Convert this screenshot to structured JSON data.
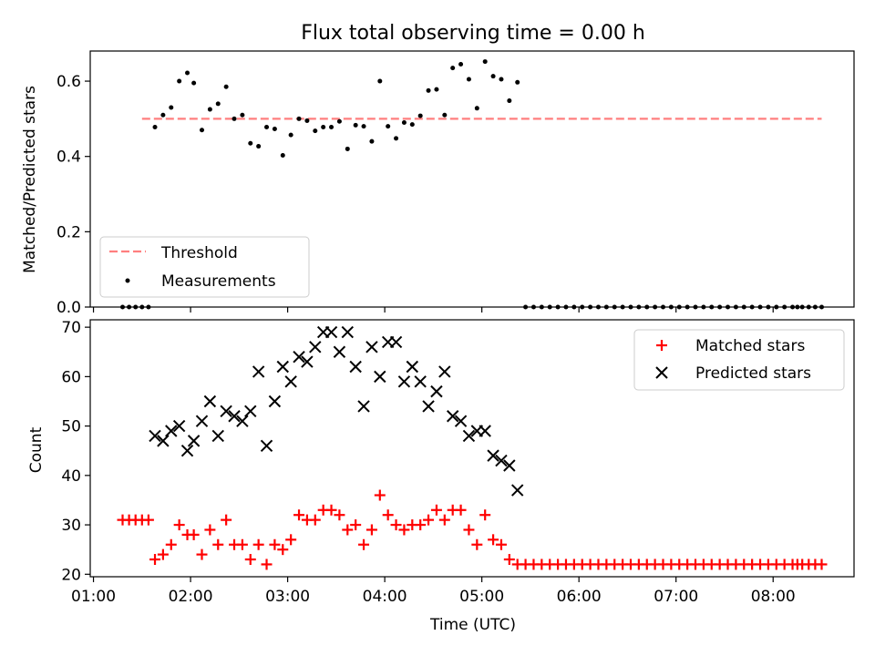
{
  "title": "Flux total observing time = 0.00 h",
  "colors": {
    "threshold": "#ff7f7f",
    "measurements": "#000000",
    "matched": "#ff0000",
    "predicted": "#000000"
  },
  "chart_data": [
    {
      "type": "scatter",
      "ylabel": "Matched/Predicted stars",
      "ylim": [
        0,
        0.68
      ],
      "yticks": [
        "0.0",
        "0.2",
        "0.4",
        "0.6"
      ],
      "legend_position": "lower-left",
      "legend": [
        "Threshold",
        "Measurements"
      ],
      "threshold": {
        "name": "Threshold",
        "y": 0.5,
        "x_start": "01:30",
        "x_end": "08:30"
      },
      "series": [
        {
          "name": "Measurements",
          "points": [
            [
              "01:18",
              0
            ],
            [
              "01:22",
              0
            ],
            [
              "01:26",
              0
            ],
            [
              "01:30",
              0
            ],
            [
              "01:34",
              0
            ],
            [
              "01:38",
              0.478
            ],
            [
              "01:43",
              0.51
            ],
            [
              "01:48",
              0.53
            ],
            [
              "01:53",
              0.6
            ],
            [
              "01:58",
              0.622
            ],
            [
              "02:02",
              0.595
            ],
            [
              "02:07",
              0.47
            ],
            [
              "02:12",
              0.525
            ],
            [
              "02:17",
              0.54
            ],
            [
              "02:22",
              0.585
            ],
            [
              "02:27",
              0.5
            ],
            [
              "02:32",
              0.51
            ],
            [
              "02:37",
              0.435
            ],
            [
              "02:42",
              0.427
            ],
            [
              "02:47",
              0.478
            ],
            [
              "02:52",
              0.473
            ],
            [
              "02:57",
              0.403
            ],
            [
              "03:02",
              0.457
            ],
            [
              "03:07",
              0.5
            ],
            [
              "03:12",
              0.495
            ],
            [
              "03:17",
              0.468
            ],
            [
              "03:22",
              0.478
            ],
            [
              "03:27",
              0.478
            ],
            [
              "03:32",
              0.493
            ],
            [
              "03:37",
              0.42
            ],
            [
              "03:42",
              0.483
            ],
            [
              "03:47",
              0.48
            ],
            [
              "03:52",
              0.44
            ],
            [
              "03:57",
              0.6
            ],
            [
              "04:02",
              0.48
            ],
            [
              "04:07",
              0.448
            ],
            [
              "04:12",
              0.49
            ],
            [
              "04:17",
              0.485
            ],
            [
              "04:22",
              0.508
            ],
            [
              "04:27",
              0.575
            ],
            [
              "04:32",
              0.578
            ],
            [
              "04:37",
              0.51
            ],
            [
              "04:42",
              0.635
            ],
            [
              "04:47",
              0.645
            ],
            [
              "04:52",
              0.605
            ],
            [
              "04:57",
              0.528
            ],
            [
              "05:02",
              0.652
            ],
            [
              "05:07",
              0.613
            ],
            [
              "05:12",
              0.605
            ],
            [
              "05:17",
              0.548
            ],
            [
              "05:22",
              0.597
            ],
            [
              "05:27",
              0
            ],
            [
              "05:32",
              0
            ],
            [
              "05:37",
              0
            ],
            [
              "05:42",
              0
            ],
            [
              "05:47",
              0
            ],
            [
              "05:52",
              0
            ],
            [
              "05:57",
              0
            ],
            [
              "06:02",
              0
            ],
            [
              "06:07",
              0
            ],
            [
              "06:12",
              0
            ],
            [
              "06:17",
              0
            ],
            [
              "06:22",
              0
            ],
            [
              "06:27",
              0
            ],
            [
              "06:32",
              0
            ],
            [
              "06:37",
              0
            ],
            [
              "06:42",
              0
            ],
            [
              "06:47",
              0
            ],
            [
              "06:52",
              0
            ],
            [
              "06:57",
              0
            ],
            [
              "07:02",
              0
            ],
            [
              "07:07",
              0
            ],
            [
              "07:12",
              0
            ],
            [
              "07:17",
              0
            ],
            [
              "07:22",
              0
            ],
            [
              "07:27",
              0
            ],
            [
              "07:32",
              0
            ],
            [
              "07:37",
              0
            ],
            [
              "07:42",
              0
            ],
            [
              "07:47",
              0
            ],
            [
              "07:52",
              0
            ],
            [
              "07:57",
              0
            ],
            [
              "08:02",
              0
            ],
            [
              "08:07",
              0
            ],
            [
              "08:12",
              0
            ],
            [
              "08:15",
              0
            ],
            [
              "08:18",
              0
            ],
            [
              "08:22",
              0
            ],
            [
              "08:26",
              0
            ],
            [
              "08:30",
              0
            ]
          ]
        }
      ]
    },
    {
      "type": "scatter",
      "xlabel": "Time (UTC)",
      "ylabel": "Count",
      "xlim": [
        "00:58",
        "08:50"
      ],
      "ylim": [
        19.5,
        71.5
      ],
      "xticks": [
        "01:00",
        "02:00",
        "03:00",
        "04:00",
        "05:00",
        "06:00",
        "07:00",
        "08:00"
      ],
      "yticks": [
        "20",
        "30",
        "40",
        "50",
        "60",
        "70"
      ],
      "legend_position": "top-right",
      "legend": [
        "Matched stars",
        "Predicted stars"
      ],
      "series": [
        {
          "name": "Matched stars",
          "points": [
            [
              "01:18",
              31
            ],
            [
              "01:22",
              31
            ],
            [
              "01:26",
              31
            ],
            [
              "01:30",
              31
            ],
            [
              "01:34",
              31
            ],
            [
              "01:38",
              23
            ],
            [
              "01:43",
              24
            ],
            [
              "01:48",
              26
            ],
            [
              "01:53",
              30
            ],
            [
              "01:58",
              28
            ],
            [
              "02:02",
              28
            ],
            [
              "02:07",
              24
            ],
            [
              "02:12",
              29
            ],
            [
              "02:17",
              26
            ],
            [
              "02:22",
              31
            ],
            [
              "02:27",
              26
            ],
            [
              "02:32",
              26
            ],
            [
              "02:37",
              23
            ],
            [
              "02:42",
              26
            ],
            [
              "02:47",
              22
            ],
            [
              "02:52",
              26
            ],
            [
              "02:57",
              25
            ],
            [
              "03:02",
              27
            ],
            [
              "03:07",
              32
            ],
            [
              "03:12",
              31
            ],
            [
              "03:17",
              31
            ],
            [
              "03:22",
              33
            ],
            [
              "03:27",
              33
            ],
            [
              "03:32",
              32
            ],
            [
              "03:37",
              29
            ],
            [
              "03:42",
              30
            ],
            [
              "03:47",
              26
            ],
            [
              "03:52",
              29
            ],
            [
              "03:57",
              36
            ],
            [
              "04:02",
              32
            ],
            [
              "04:07",
              30
            ],
            [
              "04:12",
              29
            ],
            [
              "04:17",
              30
            ],
            [
              "04:22",
              30
            ],
            [
              "04:27",
              31
            ],
            [
              "04:32",
              33
            ],
            [
              "04:37",
              31
            ],
            [
              "04:42",
              33
            ],
            [
              "04:47",
              33
            ],
            [
              "04:52",
              29
            ],
            [
              "04:57",
              26
            ],
            [
              "05:02",
              32
            ],
            [
              "05:07",
              27
            ],
            [
              "05:12",
              26
            ],
            [
              "05:17",
              23
            ],
            [
              "05:22",
              22
            ],
            [
              "05:27",
              22
            ],
            [
              "05:32",
              22
            ],
            [
              "05:37",
              22
            ],
            [
              "05:42",
              22
            ],
            [
              "05:47",
              22
            ],
            [
              "05:52",
              22
            ],
            [
              "05:57",
              22
            ],
            [
              "06:02",
              22
            ],
            [
              "06:07",
              22
            ],
            [
              "06:12",
              22
            ],
            [
              "06:17",
              22
            ],
            [
              "06:22",
              22
            ],
            [
              "06:27",
              22
            ],
            [
              "06:32",
              22
            ],
            [
              "06:37",
              22
            ],
            [
              "06:42",
              22
            ],
            [
              "06:47",
              22
            ],
            [
              "06:52",
              22
            ],
            [
              "06:57",
              22
            ],
            [
              "07:02",
              22
            ],
            [
              "07:07",
              22
            ],
            [
              "07:12",
              22
            ],
            [
              "07:17",
              22
            ],
            [
              "07:22",
              22
            ],
            [
              "07:27",
              22
            ],
            [
              "07:32",
              22
            ],
            [
              "07:37",
              22
            ],
            [
              "07:42",
              22
            ],
            [
              "07:47",
              22
            ],
            [
              "07:52",
              22
            ],
            [
              "07:57",
              22
            ],
            [
              "08:02",
              22
            ],
            [
              "08:07",
              22
            ],
            [
              "08:12",
              22
            ],
            [
              "08:15",
              22
            ],
            [
              "08:18",
              22
            ],
            [
              "08:22",
              22
            ],
            [
              "08:26",
              22
            ],
            [
              "08:30",
              22
            ]
          ]
        },
        {
          "name": "Predicted stars",
          "points": [
            [
              "01:38",
              48
            ],
            [
              "01:43",
              47
            ],
            [
              "01:48",
              49
            ],
            [
              "01:53",
              50
            ],
            [
              "01:58",
              45
            ],
            [
              "02:02",
              47
            ],
            [
              "02:07",
              51
            ],
            [
              "02:12",
              55
            ],
            [
              "02:17",
              48
            ],
            [
              "02:22",
              53
            ],
            [
              "02:27",
              52
            ],
            [
              "02:32",
              51
            ],
            [
              "02:37",
              53
            ],
            [
              "02:42",
              61
            ],
            [
              "02:47",
              46
            ],
            [
              "02:52",
              55
            ],
            [
              "02:57",
              62
            ],
            [
              "03:02",
              59
            ],
            [
              "03:07",
              64
            ],
            [
              "03:12",
              63
            ],
            [
              "03:17",
              66
            ],
            [
              "03:22",
              69
            ],
            [
              "03:27",
              69
            ],
            [
              "03:32",
              65
            ],
            [
              "03:37",
              69
            ],
            [
              "03:42",
              62
            ],
            [
              "03:47",
              54
            ],
            [
              "03:52",
              66
            ],
            [
              "03:57",
              60
            ],
            [
              "04:02",
              67
            ],
            [
              "04:07",
              67
            ],
            [
              "04:12",
              59
            ],
            [
              "04:17",
              62
            ],
            [
              "04:22",
              59
            ],
            [
              "04:27",
              54
            ],
            [
              "04:32",
              57
            ],
            [
              "04:37",
              61
            ],
            [
              "04:42",
              52
            ],
            [
              "04:47",
              51
            ],
            [
              "04:52",
              48
            ],
            [
              "04:57",
              49
            ],
            [
              "05:02",
              49
            ],
            [
              "05:07",
              44
            ],
            [
              "05:12",
              43
            ],
            [
              "05:17",
              42
            ],
            [
              "05:22",
              37
            ]
          ]
        }
      ]
    }
  ]
}
